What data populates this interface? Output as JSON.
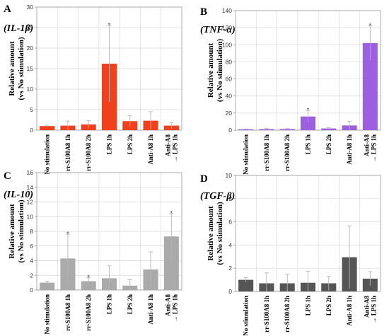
{
  "chart_data": [
    {
      "type": "bar",
      "panel": "A",
      "title": "(IL-1β)",
      "ylabel_lines": [
        "Relative amount",
        "(vs No stimulation)"
      ],
      "ylim": [
        0,
        30
      ],
      "yticks": [
        0,
        5,
        10,
        15,
        20,
        25,
        30
      ],
      "categories": [
        [
          "No stimulation"
        ],
        [
          "rr-S100A8 1h"
        ],
        [
          "rr-S100A8 2h"
        ],
        [
          "LPS 1h"
        ],
        [
          "LPS 2h"
        ],
        [
          "Anti-A8 1h"
        ],
        [
          "Anti-A8",
          "→ LPS 1h"
        ]
      ],
      "values": [
        1.0,
        1.1,
        1.4,
        16.2,
        2.2,
        2.3,
        1.1
      ],
      "errors": [
        0.2,
        1.1,
        0.9,
        9.3,
        1.3,
        2.2,
        0.7
      ],
      "significant": [
        false,
        false,
        false,
        true,
        false,
        false,
        false
      ],
      "color": "#f0401c",
      "grid": true
    },
    {
      "type": "bar",
      "panel": "B",
      "title": "(TNF-α)",
      "ylabel_lines": [
        "Relative amount",
        "(vs No stimulation)"
      ],
      "ylim": [
        0,
        140
      ],
      "yticks": [
        0,
        20,
        40,
        60,
        80,
        100,
        120,
        140
      ],
      "categories": [
        [
          "No stimulation"
        ],
        [
          "rr-S100A8 1h"
        ],
        [
          "rr-S100A8 2h"
        ],
        [
          "LPS 1h"
        ],
        [
          "LPS 2h"
        ],
        [
          "Anti-A8 1h"
        ],
        [
          "Anti-A8",
          "→ LPS 1h"
        ]
      ],
      "values": [
        1.0,
        1.2,
        1.3,
        16.0,
        2.0,
        5.5,
        102.0
      ],
      "errors": [
        0.3,
        0.7,
        0.6,
        7.0,
        0.8,
        5.0,
        20.0
      ],
      "significant": [
        false,
        false,
        false,
        true,
        false,
        false,
        true
      ],
      "color": "#9b5fe0",
      "grid": true
    },
    {
      "type": "bar",
      "panel": "C",
      "title": "(IL-10)",
      "ylabel_lines": [
        "Relative amount",
        "(vs No stimulation)"
      ],
      "ylim": [
        0,
        16
      ],
      "yticks": [
        0,
        2,
        4,
        6,
        8,
        10,
        12,
        14,
        16
      ],
      "categories": [
        [
          "No stimulation"
        ],
        [
          "rr-S100A8 1h"
        ],
        [
          "rr-S100A8 2h"
        ],
        [
          "LPS 1h"
        ],
        [
          "LPS 2h"
        ],
        [
          "Anti-A8 1h"
        ],
        [
          "Anti-A8",
          "→ LPS 1h"
        ]
      ],
      "values": [
        1.0,
        4.3,
        1.2,
        1.6,
        0.6,
        2.8,
        7.3
      ],
      "errors": [
        0.2,
        3.3,
        0.5,
        1.7,
        0.8,
        2.4,
        3.1
      ],
      "significant": [
        false,
        true,
        true,
        false,
        false,
        false,
        true
      ],
      "color": "#aaaaaa",
      "grid": true
    },
    {
      "type": "bar",
      "panel": "D",
      "title": "(TGF-β)",
      "ylabel_lines": [
        "Relative amount",
        "(vs No stimulation)"
      ],
      "ylim": [
        0,
        10
      ],
      "yticks": [
        0,
        2,
        4,
        6,
        8,
        10
      ],
      "categories": [
        [
          "No stimulation"
        ],
        [
          "rr-S100A8 1h"
        ],
        [
          "rr-S100A8 2h"
        ],
        [
          "LPS 1h"
        ],
        [
          "LPS 2h"
        ],
        [
          "Anti-A8 1h"
        ],
        [
          "Anti-A8",
          "→ LPS 1h"
        ]
      ],
      "values": [
        1.0,
        0.7,
        0.7,
        0.75,
        0.7,
        2.95,
        1.1
      ],
      "errors": [
        0.2,
        0.9,
        0.8,
        1.0,
        0.6,
        2.7,
        0.6
      ],
      "significant": [
        false,
        false,
        false,
        false,
        false,
        false,
        false
      ],
      "color": "#555555",
      "grid": true
    }
  ]
}
